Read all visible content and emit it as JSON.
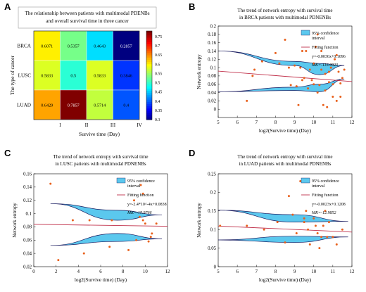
{
  "panels": [
    {
      "letter": "A"
    },
    {
      "letter": "B"
    },
    {
      "letter": "C"
    },
    {
      "letter": "D"
    }
  ],
  "chart_data": [
    {
      "type": "heatmap",
      "title_lines": [
        "The relationship between patients with multimodal PDENBs",
        "and overall survival time in three cancer"
      ],
      "xlabel": "Survive time (Day)",
      "ylabel": "The type of cancer",
      "x_categories": [
        "I",
        "II",
        "III",
        "IV"
      ],
      "y_categories": [
        "BRCA",
        "LUSC",
        "LUAD"
      ],
      "values": [
        [
          0.6071,
          0.5357,
          0.4643,
          0.2857
        ],
        [
          0.5833,
          0.5,
          0.5833,
          0.3846
        ],
        [
          0.6429,
          0.7857,
          0.5714,
          0.4
        ]
      ],
      "value_labels": [
        [
          "0.6071",
          "0.5357",
          "0.4643",
          "0.2857"
        ],
        [
          "0.5833",
          "0.5",
          "0.5833",
          "0.3846"
        ],
        [
          "0.6429",
          "0.7857",
          "0.5714",
          "0.4"
        ]
      ],
      "colorbar_range": [
        0.3,
        0.78
      ],
      "colorbar_ticks": [
        "0.75",
        "0.7",
        "0.65",
        "0.6",
        "0.55",
        "0.5",
        "0.45",
        "0.4",
        "0.35",
        "0.3"
      ],
      "colormap": "jet"
    },
    {
      "type": "scatter",
      "title_lines": [
        "The trend of network entropy with survival time",
        "in BRCA patients with multimodal PDNENBs"
      ],
      "xlabel": "log2(Survive time) (Day)",
      "ylabel": "Network entropy",
      "xlim": [
        5,
        12
      ],
      "ylim": [
        -0.02,
        0.2
      ],
      "xticks": [
        "5",
        "6",
        "7",
        "8",
        "9",
        "10",
        "11",
        "12"
      ],
      "yticks": [
        "0",
        "0.02",
        "0.04",
        "0.06",
        "0.08",
        "0.1",
        "0.12",
        "0.14",
        "0.16",
        "0.18",
        "0.2"
      ],
      "fit": {
        "slope": -0.0036,
        "intercept": 0.1096
      },
      "ci_upper_band": {
        "x": [
          5,
          9,
          10.3,
          11.6
        ],
        "upper": [
          0.14,
          0.115,
          0.11,
          0.105
        ],
        "lower": [
          0.14,
          0.105,
          0.083,
          0.105
        ]
      },
      "ci_lower_band": {
        "x": [
          5,
          9,
          10.3,
          11.6
        ],
        "upper": [
          0.042,
          0.053,
          0.06,
          0.072
        ],
        "lower": [
          0.042,
          0.045,
          0.042,
          0.072
        ]
      },
      "points": [
        [
          6.8,
          0.08
        ],
        [
          6.9,
          0.095
        ],
        [
          7.3,
          0.115
        ],
        [
          8.0,
          0.135
        ],
        [
          8.2,
          0.11
        ],
        [
          8.5,
          0.167
        ],
        [
          8.7,
          0.1
        ],
        [
          8.8,
          0.058
        ],
        [
          9.0,
          0.105
        ],
        [
          9.1,
          0.055
        ],
        [
          9.2,
          0.01
        ],
        [
          9.3,
          0.1
        ],
        [
          9.4,
          0.07
        ],
        [
          9.5,
          0.075
        ],
        [
          9.6,
          0.14
        ],
        [
          9.7,
          0.05
        ],
        [
          9.8,
          0.095
        ],
        [
          9.9,
          0.07
        ],
        [
          10.0,
          0.06
        ],
        [
          10.1,
          0.15
        ],
        [
          10.2,
          0.18
        ],
        [
          10.2,
          0.04
        ],
        [
          10.3,
          0.058
        ],
        [
          10.4,
          0.095
        ],
        [
          10.4,
          0.14
        ],
        [
          10.5,
          0.01
        ],
        [
          10.6,
          0.085
        ],
        [
          10.6,
          0.045
        ],
        [
          10.7,
          0.005
        ],
        [
          10.8,
          0.09
        ],
        [
          10.8,
          0.065
        ],
        [
          10.9,
          0.1
        ],
        [
          11.0,
          0.03
        ],
        [
          11.1,
          0.12
        ],
        [
          11.2,
          0.02
        ],
        [
          11.3,
          0.09
        ],
        [
          11.4,
          0.062
        ],
        [
          11.5,
          0.075
        ],
        [
          11.6,
          0.095
        ],
        [
          6.5,
          0.02
        ],
        [
          9.4,
          0.14
        ],
        [
          10.0,
          0.11
        ],
        [
          11.2,
          0.13
        ],
        [
          11.4,
          0.03
        ],
        [
          11.0,
          0.06
        ]
      ],
      "legend": {
        "ci": "95% confidence",
        "ci2": "interval",
        "fit": "Fitting function",
        "equation": "y=-0.0036x+0.1096",
        "mk": "MK=-116.9923"
      }
    },
    {
      "type": "scatter",
      "title_lines": [
        "The trend of network entropy with survival time",
        "in LUSC patients with multimodal PDNENBs"
      ],
      "xlabel": "log2(Survive time) (Day)",
      "ylabel": "Network entropy",
      "xlim": [
        0,
        12
      ],
      "ylim": [
        0.02,
        0.16
      ],
      "xticks": [
        "0",
        "2",
        "4",
        "6",
        "8",
        "10",
        "12"
      ],
      "yticks": [
        "0.02",
        "0.04",
        "0.06",
        "0.08",
        "0.1",
        "0.12",
        "0.14",
        "0.16"
      ],
      "fit": {
        "slope": -0.00024,
        "intercept": 0.0838
      },
      "ci_upper_band": {
        "x": [
          1.5,
          7.5,
          11.5
        ],
        "upper": [
          0.115,
          0.105,
          0.098
        ],
        "lower": [
          0.115,
          0.09,
          0.098
        ]
      },
      "ci_lower_band": {
        "x": [
          1.5,
          7.5,
          11.5
        ],
        "upper": [
          0.052,
          0.07,
          0.062
        ],
        "lower": [
          0.052,
          0.058,
          0.062
        ]
      },
      "points": [
        [
          1.5,
          0.145
        ],
        [
          2.2,
          0.03
        ],
        [
          3.5,
          0.09
        ],
        [
          4.5,
          0.04
        ],
        [
          5.0,
          0.09
        ],
        [
          6.8,
          0.05
        ],
        [
          7.0,
          0.09
        ],
        [
          8.5,
          0.045
        ],
        [
          9.0,
          0.12
        ],
        [
          9.2,
          0.06
        ],
        [
          9.5,
          0.095
        ],
        [
          9.6,
          0.143
        ],
        [
          9.8,
          0.09
        ],
        [
          10.0,
          0.085
        ],
        [
          10.3,
          0.058
        ],
        [
          10.5,
          0.065
        ],
        [
          10.6,
          0.07
        ],
        [
          11.0,
          0.085
        ],
        [
          9.8,
          0.13
        ]
      ],
      "legend": {
        "ci": "95% confidence",
        "ci2": "interval",
        "fit": "Fitting function",
        "equation": "y=-2.4*10^-4x+0.0838",
        "mk": "MK=-15.9766"
      }
    },
    {
      "type": "scatter",
      "title_lines": [
        "The trend of network entropy with survival time",
        "in LUAD patients with multimodal PDNENBs"
      ],
      "xlabel": "log2(Survive time) (Day)",
      "ylabel": "Network entropy",
      "xlim": [
        5,
        12
      ],
      "ylim": [
        0,
        0.25
      ],
      "xticks": [
        "5",
        "6",
        "7",
        "8",
        "9",
        "10",
        "11",
        "12"
      ],
      "yticks": [
        "0",
        "0.05",
        "0.1",
        "0.15",
        "0.2",
        "0.25"
      ],
      "fit": {
        "slope": -0.0023,
        "intercept": 0.1208
      },
      "ci_upper_band": {
        "x": [
          5,
          9,
          11.8
        ],
        "upper": [
          0.152,
          0.14,
          0.122
        ],
        "lower": [
          0.152,
          0.12,
          0.122
        ]
      },
      "ci_lower_band": {
        "x": [
          5,
          9,
          11.8
        ],
        "upper": [
          0.072,
          0.082,
          0.08
        ],
        "lower": [
          0.072,
          0.065,
          0.08
        ]
      },
      "points": [
        [
          5.1,
          0.11
        ],
        [
          6.5,
          0.11
        ],
        [
          7.4,
          0.1
        ],
        [
          8.1,
          0.12
        ],
        [
          8.5,
          0.065
        ],
        [
          8.7,
          0.19
        ],
        [
          8.9,
          0.14
        ],
        [
          9.1,
          0.09
        ],
        [
          9.3,
          0.23
        ],
        [
          9.5,
          0.12
        ],
        [
          9.6,
          0.15
        ],
        [
          9.7,
          0.1
        ],
        [
          9.8,
          0.06
        ],
        [
          10.0,
          0.13
        ],
        [
          10.1,
          0.11
        ],
        [
          10.2,
          0.09
        ],
        [
          10.3,
          0.05
        ],
        [
          10.4,
          0.08
        ],
        [
          10.5,
          0.11
        ],
        [
          10.6,
          0.15
        ],
        [
          10.7,
          0.08
        ],
        [
          10.8,
          0.12
        ],
        [
          11.0,
          0.08
        ],
        [
          11.2,
          0.06
        ],
        [
          11.5,
          0.1
        ],
        [
          9.5,
          0.13
        ]
      ],
      "legend": {
        "ci": "95% confidence",
        "ci2": "interval",
        "fit": "Fitting function",
        "equation": "y=-0.0023x+0.1208",
        "mk": "MK=-12.9852"
      }
    }
  ],
  "colors": {
    "ci_fill": "#5bc8ee",
    "ci_stroke": "#1a1a5e",
    "fit_line": "#c0304a",
    "points": "#e8601c"
  }
}
